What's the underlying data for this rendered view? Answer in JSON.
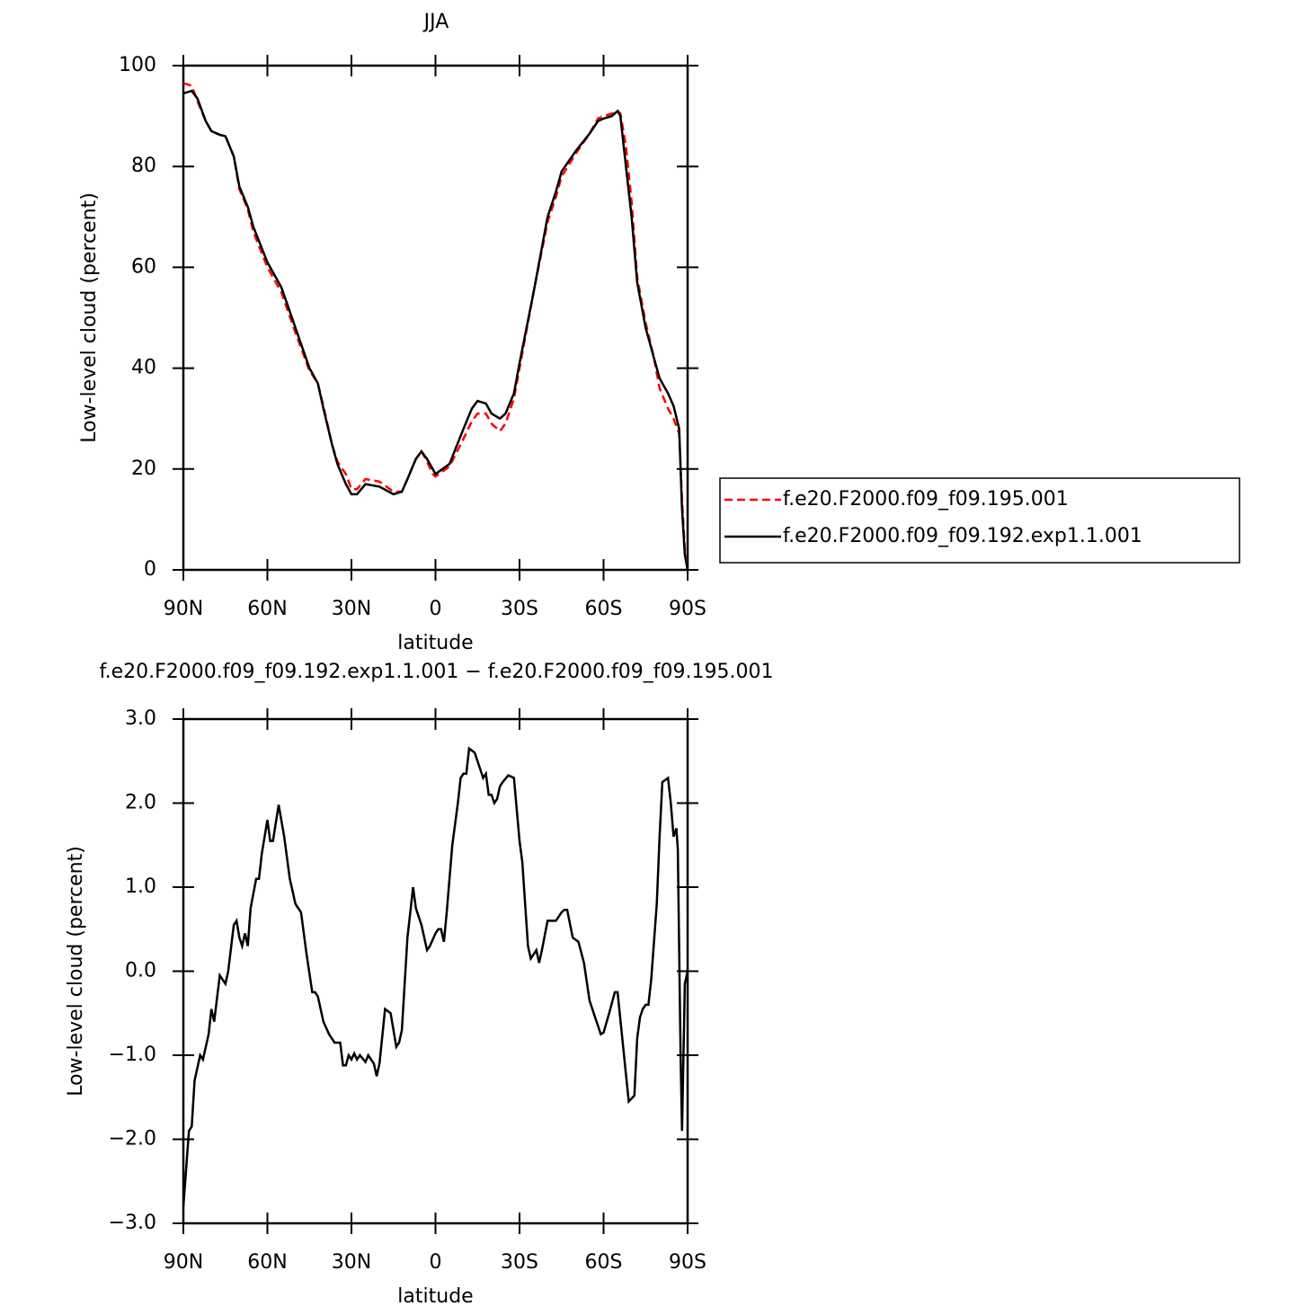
{
  "chart_data": [
    {
      "type": "line",
      "title": "JJA",
      "xlabel": "latitude",
      "ylabel": "Low-level cloud (percent)",
      "x": [
        90,
        87,
        85,
        82,
        80,
        77,
        75,
        72,
        70,
        67,
        65,
        60,
        55,
        50,
        45,
        42,
        40,
        37,
        35,
        32,
        30,
        28,
        25,
        20,
        15,
        12,
        10,
        7,
        5,
        3,
        1,
        0,
        -5,
        -10,
        -13,
        -15,
        -18,
        -20,
        -23,
        -25,
        -28,
        -30,
        -35,
        -40,
        -43,
        -45,
        -50,
        -55,
        -58,
        -60,
        -63,
        -65,
        -66,
        -68,
        -70,
        -72,
        -75,
        -78,
        -80,
        -83,
        -85,
        -87,
        -88,
        -89,
        -90
      ],
      "series": [
        {
          "name": "f.e20.F2000.f09_f09.195.001",
          "color": "#ff0000",
          "style": "dashed",
          "values": [
            96.5,
            96,
            93,
            89,
            87,
            86.3,
            86,
            82,
            75.5,
            71.5,
            67,
            60,
            55,
            47,
            39.5,
            37,
            32.5,
            25,
            21.5,
            19,
            16,
            16,
            18,
            17.5,
            15.5,
            15.5,
            18,
            22,
            23.5,
            21.5,
            19,
            18.5,
            20.5,
            26,
            29.5,
            31,
            31,
            29,
            27.5,
            29,
            34,
            40,
            55,
            69,
            74,
            78,
            82.5,
            86.5,
            89.5,
            90,
            90.5,
            91,
            90.5,
            84,
            73,
            58,
            49,
            42,
            36,
            32,
            30,
            27,
            14,
            4,
            0
          ]
        },
        {
          "name": "f.e20.F2000.f09_f09.192.exp1.1.001",
          "color": "#000000",
          "style": "solid",
          "values": [
            94.5,
            95,
            93.5,
            89,
            87,
            86.3,
            86,
            82,
            76,
            72,
            68,
            61,
            56,
            48,
            40,
            37,
            32,
            25,
            21,
            17,
            15,
            15,
            17,
            16.5,
            15,
            15.5,
            18,
            22,
            23.5,
            22,
            20,
            19,
            21,
            28,
            32,
            33.5,
            33,
            31,
            30,
            31,
            35,
            41,
            55,
            70,
            75,
            79,
            83,
            86.5,
            89,
            89.5,
            90,
            91,
            90,
            80,
            70,
            57,
            48,
            42,
            38,
            35,
            32.5,
            28,
            12,
            3,
            0
          ]
        }
      ],
      "xlim": [
        90,
        -90
      ],
      "xticks": [
        {
          "value": 90,
          "label": "90N"
        },
        {
          "value": 60,
          "label": "60N"
        },
        {
          "value": 30,
          "label": "30N"
        },
        0,
        {
          "value": -30,
          "label": "30S"
        },
        {
          "value": -60,
          "label": "60S"
        },
        {
          "value": -90,
          "label": "90S"
        }
      ],
      "ylim": [
        0,
        100
      ],
      "yticks": [
        0,
        20,
        40,
        60,
        80,
        100
      ],
      "legend": "right"
    },
    {
      "type": "line",
      "title": "f.e20.F2000.f09_f09.192.exp1.1.001 − f.e20.F2000.f09_f09.195.001",
      "xlabel": "latitude",
      "ylabel": "Low-level cloud (percent)",
      "x": [
        90,
        88,
        87,
        86,
        84,
        83,
        81,
        80,
        79,
        77,
        75,
        74,
        72,
        71,
        70,
        69,
        68,
        67,
        66,
        64,
        63,
        62,
        60,
        59,
        58,
        56,
        54,
        52,
        50,
        48,
        46,
        44,
        43,
        42,
        40,
        38,
        36,
        34,
        33,
        32,
        31,
        30,
        29,
        28,
        27,
        25,
        24,
        22,
        21,
        20,
        18,
        16,
        14,
        13,
        12,
        10,
        8,
        7,
        5,
        3,
        2,
        0,
        -1,
        -2,
        -3,
        -4,
        -6,
        -8,
        -9,
        -10,
        -11,
        -12,
        -14,
        -16,
        -17,
        -18,
        -19,
        -20,
        -21,
        -22,
        -23,
        -24,
        -26,
        -28,
        -30,
        -31,
        -33,
        -34,
        -35,
        -36,
        -37,
        -38,
        -40,
        -41,
        -43,
        -45,
        -46,
        -47,
        -49,
        -51,
        -53,
        -55,
        -57,
        -59,
        -60,
        -62,
        -64,
        -65,
        -67,
        -69,
        -71,
        -72,
        -73,
        -74,
        -75,
        -76,
        -77,
        -79,
        -80,
        -81,
        -83,
        -84,
        -85,
        -86,
        -86.5,
        -87.5,
        -88,
        -89,
        -90
      ],
      "series": [
        {
          "color": "#000000",
          "style": "solid",
          "values": [
            -2.8,
            -1.9,
            -1.85,
            -1.3,
            -1.0,
            -1.05,
            -0.75,
            -0.45,
            -0.6,
            -0.05,
            -0.15,
            0.0,
            0.55,
            0.6,
            0.4,
            0.3,
            0.45,
            0.3,
            0.75,
            1.1,
            1.1,
            1.4,
            1.8,
            1.55,
            1.55,
            1.98,
            1.6,
            1.1,
            0.8,
            0.7,
            0.2,
            -0.25,
            -0.25,
            -0.3,
            -0.6,
            -0.75,
            -0.85,
            -0.85,
            -1.12,
            -1.12,
            -1.0,
            -1.05,
            -0.98,
            -1.05,
            -1.0,
            -1.08,
            -1.0,
            -1.1,
            -1.25,
            -1.1,
            -0.45,
            -0.5,
            -0.9,
            -0.85,
            -0.7,
            0.4,
            1.0,
            0.75,
            0.55,
            0.25,
            0.3,
            0.45,
            0.5,
            0.5,
            0.35,
            0.7,
            1.5,
            2.0,
            2.3,
            2.35,
            2.35,
            2.65,
            2.6,
            2.4,
            2.3,
            2.35,
            2.1,
            2.1,
            2.0,
            2.05,
            2.2,
            2.25,
            2.33,
            2.3,
            1.55,
            1.3,
            0.3,
            0.15,
            0.2,
            0.25,
            0.1,
            0.25,
            0.6,
            0.6,
            0.6,
            0.7,
            0.73,
            0.73,
            0.4,
            0.35,
            0.1,
            -0.35,
            -0.55,
            -0.75,
            -0.73,
            -0.5,
            -0.25,
            -0.25,
            -0.9,
            -1.55,
            -1.48,
            -0.8,
            -0.55,
            -0.45,
            -0.4,
            -0.4,
            -0.1,
            0.8,
            1.6,
            2.25,
            2.3,
            2.0,
            1.6,
            1.7,
            1.45,
            -1.0,
            -1.9,
            -0.15,
            0.0
          ]
        }
      ],
      "xlim": [
        90,
        -90
      ],
      "xticks": [
        {
          "value": 90,
          "label": "90N"
        },
        {
          "value": 60,
          "label": "60N"
        },
        {
          "value": 30,
          "label": "30N"
        },
        0,
        {
          "value": -30,
          "label": "30S"
        },
        {
          "value": -60,
          "label": "60S"
        },
        {
          "value": -90,
          "label": "90S"
        }
      ],
      "ylim": [
        -3,
        3
      ],
      "yticks": [
        {
          "value": -3,
          "label": "−3.0"
        },
        {
          "value": -2,
          "label": "−2.0"
        },
        {
          "value": -1,
          "label": "−1.0"
        },
        {
          "value": 0,
          "label": "0.0"
        },
        {
          "value": 1,
          "label": "1.0"
        },
        {
          "value": 2,
          "label": "2.0"
        },
        {
          "value": 3,
          "label": "3.0"
        }
      ]
    }
  ]
}
